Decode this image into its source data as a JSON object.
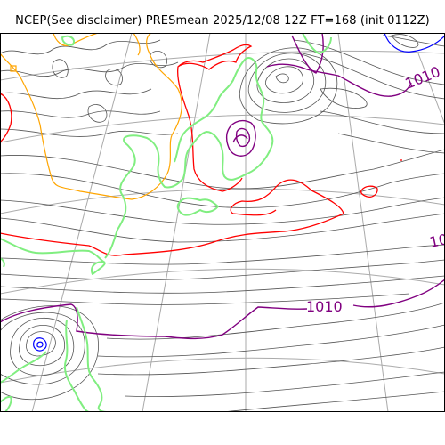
{
  "title": "NCEP(See disclaimer) PRESmean 2025/12/08 12Z FT=168 (init 0112Z)",
  "contour_labels": {
    "isobar_1010_a": "1010",
    "isobar_1010_b": "1010",
    "isobar_edge": "10"
  },
  "colors": {
    "background": "#ffffff",
    "frame": "#000000",
    "isobar": "#555555",
    "highlight_isobar_purple": "#800080",
    "red_contour": "#ff0000",
    "orange_contour": "#ffa500",
    "blue_contour": "#0000ff",
    "coastline": "#80ee80",
    "graticule": "#aaaaaa"
  }
}
